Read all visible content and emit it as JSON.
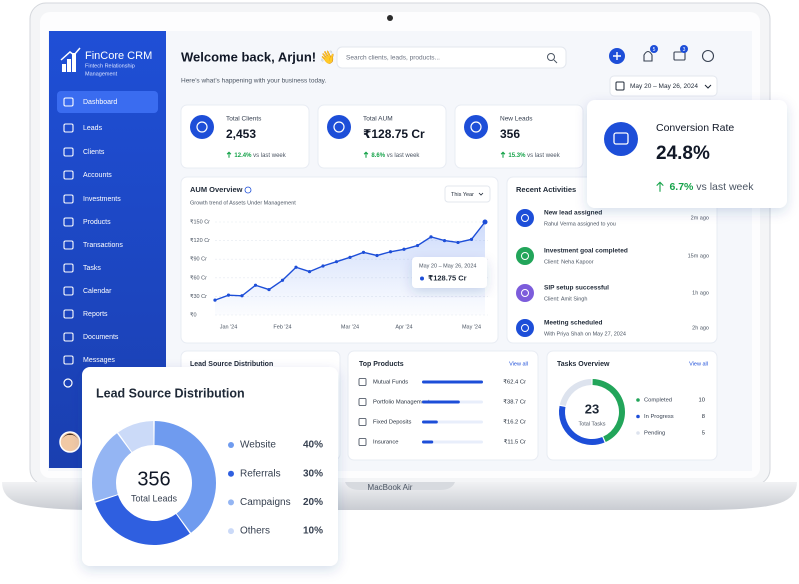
{
  "device_label": "MacBook Air",
  "sidebar": {
    "brand": "FinCore CRM",
    "tagline": [
      "Fintech Relationship",
      "Management"
    ],
    "menu": [
      "Dashboard",
      "Leads",
      "Clients",
      "Accounts",
      "Investments",
      "Products",
      "Transactions",
      "Tasks",
      "Calendar",
      "Reports",
      "Documents",
      "Messages"
    ]
  },
  "header": {
    "title": "Welcome back, Arjun! 👋",
    "subtitle": "Here’s what’s happening with your business today.",
    "search_placeholder": "Search clients, leads, products...",
    "notification_count": 5,
    "message_count": 3,
    "date_range": "May 20 – May 26, 2024"
  },
  "kpis": [
    {
      "label": "Total Clients",
      "value": "2,453",
      "change": "12.4%",
      "note": "vs last week"
    },
    {
      "label": "Total AUM",
      "value": "₹128.75 Cr",
      "change": "8.6%",
      "note": "vs last week"
    },
    {
      "label": "New Leads",
      "value": "356",
      "change": "15.3%",
      "note": "vs last week"
    }
  ],
  "conversion": {
    "label": "Conversion Rate",
    "value": "24.8%",
    "change": "6.7%",
    "note": "vs last week"
  },
  "aum_chart": {
    "type": "line",
    "title": "AUM Overview",
    "subtitle": "Growth trend of Assets Under Management",
    "period": "This Year",
    "categories": [
      null,
      "Jan '24",
      null,
      null,
      null,
      "Feb '24",
      null,
      null,
      null,
      null,
      "Mar '24",
      null,
      null,
      null,
      "Apr '24",
      null,
      null,
      null,
      null,
      "May '24",
      null
    ],
    "values": [
      24,
      32,
      31,
      48,
      41,
      56,
      77,
      70,
      79,
      86,
      93,
      101,
      96,
      102,
      106,
      112,
      126,
      120,
      117,
      122,
      150
    ],
    "ylim": [
      0,
      150
    ],
    "yticks": [
      {
        "value": 0,
        "label": "₹0"
      },
      {
        "value": 30,
        "label": "₹30 Cr"
      },
      {
        "value": 60,
        "label": "₹60 Cr"
      },
      {
        "value": 90,
        "label": "₹90 Cr"
      },
      {
        "value": 120,
        "label": "₹120 Cr"
      },
      {
        "value": 150,
        "label": "₹150 Cr"
      }
    ],
    "grid": true,
    "color": "#1d4ed8",
    "tooltip": {
      "date": "May 20 – May 26, 2024",
      "value": "₹128.75 Cr"
    }
  },
  "recent_activities": {
    "title": "Recent Activities",
    "items": [
      {
        "title": "New lead assigned",
        "detail": "Rahul Verma assigned to you",
        "time": "2m ago",
        "color": "#1d4ed8"
      },
      {
        "title": "Investment goal completed",
        "detail": "Client: Neha Kapoor",
        "time": "15m ago",
        "color": "#22a55a"
      },
      {
        "title": "SIP setup successful",
        "detail": "Client: Amit Singh",
        "time": "1h ago",
        "color": "#7c5cdb"
      },
      {
        "title": "Meeting scheduled",
        "detail": "With Priya Shah on May 27, 2024",
        "time": "2h ago",
        "color": "#1d4ed8"
      }
    ]
  },
  "lead_sources": {
    "type": "donut",
    "title": "Lead Source Distribution",
    "total": 356,
    "total_label": "Total Leads",
    "categories": [
      "Website",
      "Referrals",
      "Campaigns",
      "Others"
    ],
    "values": [
      40,
      30,
      20,
      10
    ],
    "value_labels": [
      "40%",
      "30%",
      "20%",
      "10%"
    ],
    "colors": [
      "#6f9bef",
      "#2f5fe0",
      "#94b5f3",
      "#cbdaf8"
    ]
  },
  "top_products": {
    "type": "bar",
    "title": "Top Products",
    "action": "View all",
    "categories": [
      "Mutual Funds",
      "Portfolio Management",
      "Fixed Deposits",
      "Insurance"
    ],
    "values": [
      62.4,
      38.7,
      16.2,
      11.5
    ],
    "value_labels": [
      "₹62.4 Cr",
      "₹38.7 Cr",
      "₹16.2 Cr",
      "₹11.5 Cr"
    ],
    "xlim": [
      0,
      62.4
    ],
    "color": "#1d4ed8"
  },
  "tasks": {
    "type": "donut",
    "title": "Tasks Overview",
    "action": "View all",
    "total": 23,
    "total_label": "Total Tasks",
    "categories": [
      "Completed",
      "In Progress",
      "Pending"
    ],
    "values": [
      10,
      8,
      5
    ],
    "colors": [
      "#22a55a",
      "#1d4ed8",
      "#dde3ee"
    ]
  }
}
